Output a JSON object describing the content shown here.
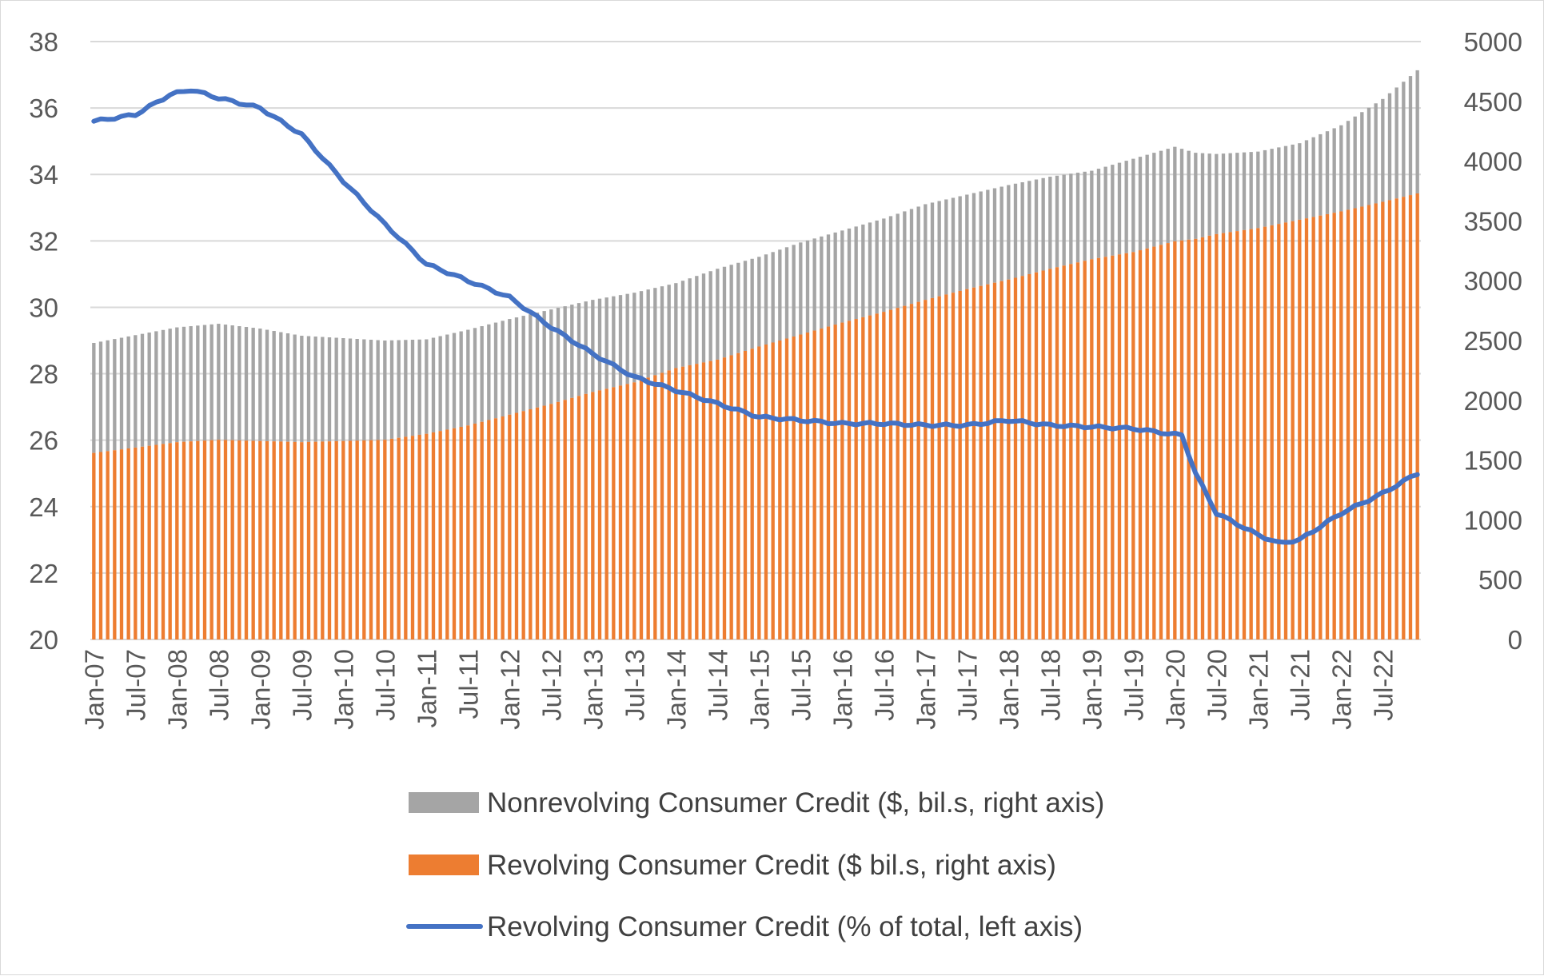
{
  "chart_data": {
    "type": "bar",
    "subtype": "stacked-bar-with-line, dual-axis",
    "title": "",
    "xlabel": "",
    "ylabel_left": "",
    "ylabel_right": "",
    "x_start": "Jan-07",
    "x_end": "Dec-22",
    "x_frequency": "monthly",
    "x_tick_labels": [
      "Jan-07",
      "Jul-07",
      "Jan-08",
      "Jul-08",
      "Jan-09",
      "Jul-09",
      "Jan-10",
      "Jul-10",
      "Jan-11",
      "Jul-11",
      "Jan-12",
      "Jul-12",
      "Jan-13",
      "Jul-13",
      "Jan-14",
      "Jul-14",
      "Jan-15",
      "Jul-15",
      "Jan-16",
      "Jul-16",
      "Jan-17",
      "Jul-17",
      "Jan-18",
      "Jul-18",
      "Jan-19",
      "Jul-19",
      "Jan-20",
      "Jul-20",
      "Jan-21",
      "Jul-21",
      "Jan-22",
      "Jul-22"
    ],
    "y_left": {
      "min": 20,
      "max": 38,
      "step": 2,
      "ticks": [
        "20",
        "22",
        "24",
        "26",
        "28",
        "30",
        "32",
        "34",
        "36",
        "38"
      ]
    },
    "y_right": {
      "min": 0,
      "max": 5000,
      "step": 500,
      "ticks": [
        "0",
        "500",
        "1000",
        "1500",
        "2000",
        "2500",
        "3000",
        "3500",
        "4000",
        "4500",
        "5000"
      ]
    },
    "grid": "horizontal",
    "legend_position": "bottom",
    "series": [
      {
        "name": "Nonrevolving Consumer Credit ($, bil.s, right axis)",
        "kind": "bar-stacked",
        "axis": "right",
        "color": "#a5a5a5",
        "anchors": [
          [
            "Jan-07",
            2480
          ],
          [
            "Jan-08",
            2610
          ],
          [
            "Jul-08",
            2640
          ],
          [
            "Jan-09",
            2600
          ],
          [
            "Jul-09",
            2540
          ],
          [
            "Jan-10",
            2520
          ],
          [
            "Jul-10",
            2500
          ],
          [
            "Jan-11",
            2510
          ],
          [
            "Jul-11",
            2590
          ],
          [
            "Jan-12",
            2680
          ],
          [
            "Jul-12",
            2760
          ],
          [
            "Jan-13",
            2840
          ],
          [
            "Jul-13",
            2900
          ],
          [
            "Jan-14",
            2980
          ],
          [
            "Jul-14",
            3100
          ],
          [
            "Jan-15",
            3200
          ],
          [
            "Jul-15",
            3320
          ],
          [
            "Jan-16",
            3420
          ],
          [
            "Jul-16",
            3520
          ],
          [
            "Jan-17",
            3640
          ],
          [
            "Jul-17",
            3720
          ],
          [
            "Jan-18",
            3800
          ],
          [
            "Jul-18",
            3870
          ],
          [
            "Jan-19",
            3920
          ],
          [
            "Jul-19",
            4020
          ],
          [
            "Jan-20",
            4120
          ],
          [
            "Apr-20",
            4070
          ],
          [
            "Jul-20",
            4060
          ],
          [
            "Jan-21",
            4080
          ],
          [
            "Jul-21",
            4150
          ],
          [
            "Jan-22",
            4300
          ],
          [
            "Jul-22",
            4520
          ],
          [
            "Dec-22",
            4760
          ]
        ]
      },
      {
        "name": "Revolving Consumer Credit ($ bil.s, right axis)",
        "kind": "bar-stacked",
        "axis": "right",
        "color": "#ed7d31",
        "anchors": [
          [
            "Jan-07",
            1560
          ],
          [
            "Jan-08",
            1650
          ],
          [
            "Jul-08",
            1670
          ],
          [
            "Jan-09",
            1660
          ],
          [
            "Jul-09",
            1650
          ],
          [
            "Jan-10",
            1660
          ],
          [
            "Jul-10",
            1670
          ],
          [
            "Jan-11",
            1720
          ],
          [
            "Jul-11",
            1790
          ],
          [
            "Jan-12",
            1880
          ],
          [
            "Jul-12",
            1970
          ],
          [
            "Jan-13",
            2070
          ],
          [
            "Jul-13",
            2150
          ],
          [
            "Jan-14",
            2270
          ],
          [
            "Jul-14",
            2340
          ],
          [
            "Jan-15",
            2450
          ],
          [
            "Jul-15",
            2550
          ],
          [
            "Jan-16",
            2650
          ],
          [
            "Jul-16",
            2740
          ],
          [
            "Jan-17",
            2840
          ],
          [
            "Jul-17",
            2930
          ],
          [
            "Jan-18",
            3010
          ],
          [
            "Jul-18",
            3100
          ],
          [
            "Jan-19",
            3180
          ],
          [
            "Jul-19",
            3240
          ],
          [
            "Jan-20",
            3330
          ],
          [
            "Apr-20",
            3350
          ],
          [
            "Jul-20",
            3390
          ],
          [
            "Jan-21",
            3440
          ],
          [
            "Jul-21",
            3510
          ],
          [
            "Jan-22",
            3580
          ],
          [
            "Jul-22",
            3660
          ],
          [
            "Dec-22",
            3730
          ]
        ]
      },
      {
        "name": "Revolving Consumer Credit (% of total, left axis)",
        "kind": "line",
        "axis": "left",
        "color": "#4472c4",
        "anchors": [
          [
            "Jan-07",
            35.6
          ],
          [
            "Jul-07",
            35.8
          ],
          [
            "Dec-07",
            36.4
          ],
          [
            "Mar-08",
            36.55
          ],
          [
            "Jul-08",
            36.3
          ],
          [
            "Jan-09",
            36.0
          ],
          [
            "Jul-09",
            35.2
          ],
          [
            "Jan-10",
            33.8
          ],
          [
            "Jul-10",
            32.5
          ],
          [
            "Jan-11",
            31.3
          ],
          [
            "Jul-11",
            30.8
          ],
          [
            "Jan-12",
            30.3
          ],
          [
            "Jul-12",
            29.4
          ],
          [
            "Jan-13",
            28.6
          ],
          [
            "Jul-13",
            27.9
          ],
          [
            "Jan-14",
            27.5
          ],
          [
            "Jul-14",
            27.1
          ],
          [
            "Jan-15",
            26.7
          ],
          [
            "Jul-15",
            26.6
          ],
          [
            "Jan-16",
            26.5
          ],
          [
            "Jul-16",
            26.5
          ],
          [
            "Jan-17",
            26.45
          ],
          [
            "Jul-17",
            26.45
          ],
          [
            "Jan-18",
            26.6
          ],
          [
            "Jul-18",
            26.45
          ],
          [
            "Jan-19",
            26.4
          ],
          [
            "Jul-19",
            26.35
          ],
          [
            "Dec-19",
            26.2
          ],
          [
            "Feb-20",
            26.15
          ],
          [
            "Apr-20",
            25.0
          ],
          [
            "Jul-20",
            23.8
          ],
          [
            "Jan-21",
            23.15
          ],
          [
            "Apr-21",
            22.9
          ],
          [
            "Jul-21",
            23.0
          ],
          [
            "Jan-22",
            23.8
          ],
          [
            "Jul-22",
            24.4
          ],
          [
            "Dec-22",
            25.0
          ]
        ]
      }
    ]
  }
}
